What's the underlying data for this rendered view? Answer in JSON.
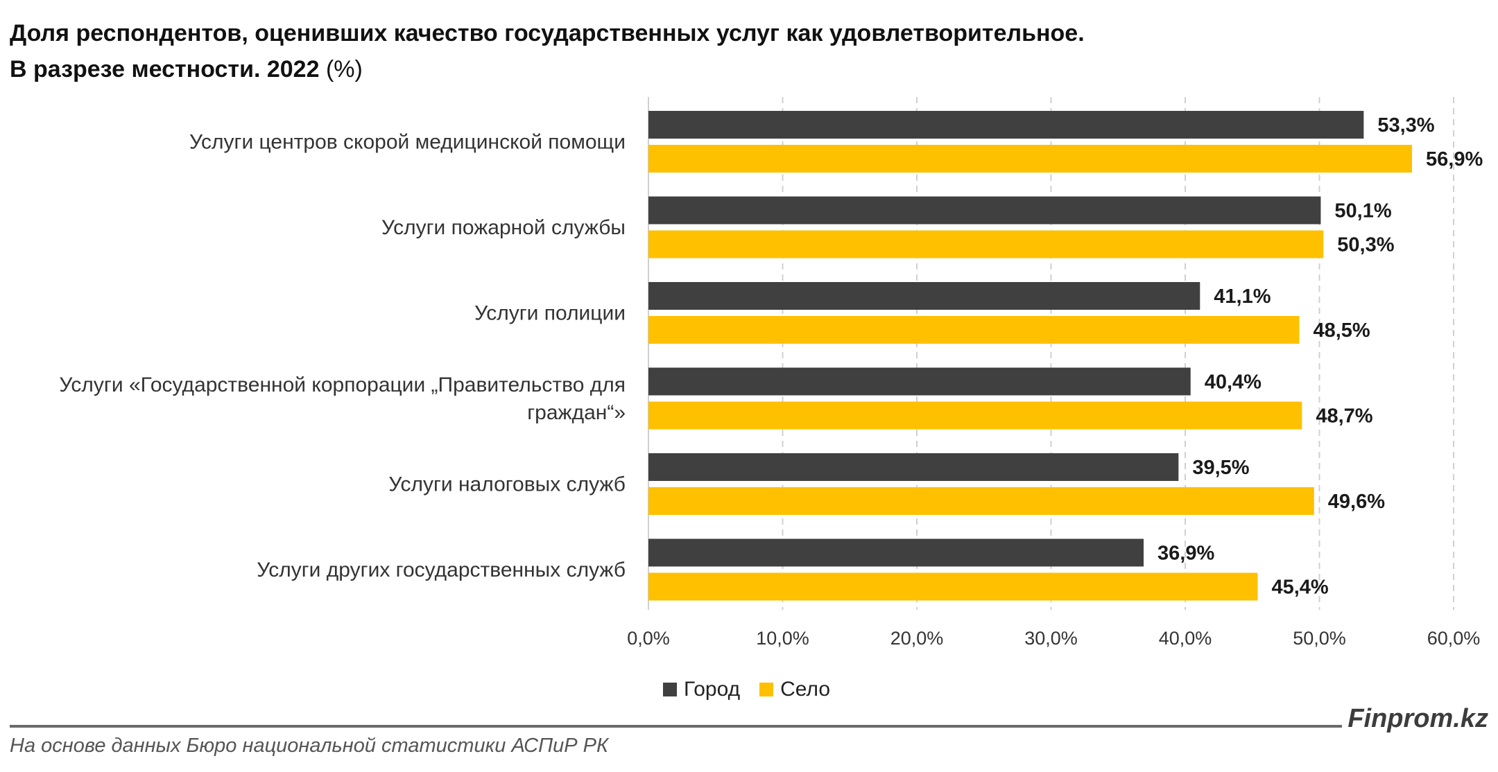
{
  "title": {
    "line1": "Доля респондентов, оценивших качество государственных услуг как удовлетворительное.",
    "line2": "В разрезе местности. 2022",
    "unit": "(%)"
  },
  "colors": {
    "city": "#404040",
    "village": "#FFC000",
    "grid": "#d0d0d0"
  },
  "chart_data": {
    "type": "bar",
    "orientation": "horizontal",
    "title": "Доля респондентов, оценивших качество государственных услуг как удовлетворительное. В разрезе местности. 2022 (%)",
    "categories": [
      [
        "Услуги центров скорой медицинской помощи"
      ],
      [
        "Услуги пожарной службы"
      ],
      [
        "Услуги полиции"
      ],
      [
        "Услуги «Государственной корпорации „Правительство для",
        "граждан“»"
      ],
      [
        "Услуги налоговых служб"
      ],
      [
        "Услуги других государственных служб"
      ]
    ],
    "series": [
      {
        "name": "Город",
        "values": [
          53.3,
          50.1,
          41.1,
          40.4,
          39.5,
          36.9
        ],
        "labels": [
          "53,3%",
          "50,1%",
          "41,1%",
          "40,4%",
          "39,5%",
          "36,9%"
        ]
      },
      {
        "name": "Село",
        "values": [
          56.9,
          50.3,
          48.5,
          48.7,
          49.6,
          45.4
        ],
        "labels": [
          "56,9%",
          "50,3%",
          "48,5%",
          "48,7%",
          "49,6%",
          "45,4%"
        ]
      }
    ],
    "xlim": [
      0,
      60
    ],
    "xticks": [
      0,
      10,
      20,
      30,
      40,
      50,
      60
    ],
    "xtick_labels": [
      "0,0%",
      "10,0%",
      "20,0%",
      "30,0%",
      "40,0%",
      "50,0%",
      "60,0%"
    ],
    "grid": true,
    "legend_position": "bottom"
  },
  "footer": {
    "brand": "Finprom.kz",
    "source": "На основе данных Бюро национальной статистики АСПиР РК"
  }
}
